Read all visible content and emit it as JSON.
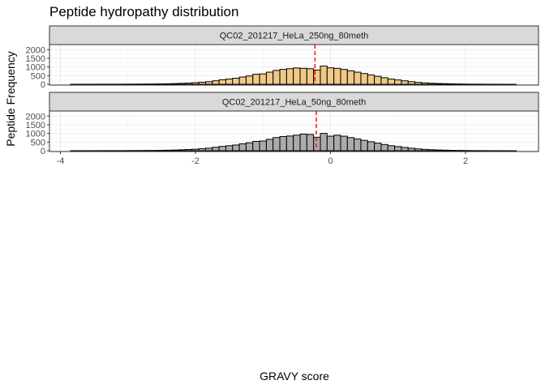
{
  "chart_data": {
    "type": "bar",
    "chart_kind": "faceted histogram",
    "title": "Peptide hydropathy distribution",
    "xlabel": "GRAVY score",
    "ylabel": "Peptide Frequency",
    "xlim": [
      -4,
      2.8
    ],
    "ylim": [
      0,
      2200
    ],
    "x_ticks": [
      -4,
      -2,
      0,
      2
    ],
    "x_tick_labels": [
      "-4",
      "-2",
      "0",
      "2"
    ],
    "y_ticks": [
      0,
      500,
      1000,
      1500,
      2000
    ],
    "y_tick_labels": [
      "0",
      "500",
      "1000",
      "1500",
      "2000"
    ],
    "grid": true,
    "bin_width": 0.1,
    "bin_centers": [
      -3.8,
      -3.7,
      -3.6,
      -3.5,
      -3.4,
      -3.3,
      -3.2,
      -3.1,
      -3.0,
      -2.9,
      -2.8,
      -2.7,
      -2.6,
      -2.5,
      -2.4,
      -2.3,
      -2.2,
      -2.1,
      -2.0,
      -1.9,
      -1.8,
      -1.7,
      -1.6,
      -1.5,
      -1.4,
      -1.3,
      -1.2,
      -1.1,
      -1.0,
      -0.9,
      -0.8,
      -0.7,
      -0.6,
      -0.5,
      -0.4,
      -0.3,
      -0.2,
      -0.1,
      0.0,
      0.1,
      0.2,
      0.3,
      0.4,
      0.5,
      0.6,
      0.7,
      0.8,
      0.9,
      1.0,
      1.1,
      1.2,
      1.3,
      1.4,
      1.5,
      1.6,
      1.7,
      1.8,
      1.9,
      2.0,
      2.1,
      2.2,
      2.3,
      2.4,
      2.5,
      2.6,
      2.7
    ],
    "facets": [
      {
        "label": "QC02_201217_HeLa_250ng_80meth",
        "fill_color": "#F0C987",
        "mean_line": -0.23,
        "values": [
          2,
          2,
          3,
          3,
          4,
          5,
          5,
          6,
          8,
          10,
          12,
          15,
          18,
          22,
          30,
          40,
          55,
          70,
          90,
          120,
          150,
          200,
          260,
          300,
          350,
          420,
          480,
          580,
          600,
          700,
          800,
          860,
          900,
          940,
          920,
          900,
          820,
          1050,
          950,
          920,
          860,
          780,
          700,
          620,
          540,
          460,
          380,
          300,
          250,
          200,
          150,
          110,
          80,
          60,
          45,
          35,
          25,
          18,
          12,
          8,
          6,
          4,
          3,
          2,
          1,
          1
        ]
      },
      {
        "label": "QC02_201217_HeLa_50ng_80meth",
        "fill_color": "#ABABAB",
        "mean_line": -0.21,
        "values": [
          2,
          2,
          3,
          3,
          4,
          5,
          5,
          6,
          8,
          10,
          12,
          15,
          18,
          22,
          30,
          40,
          55,
          70,
          90,
          120,
          150,
          200,
          250,
          290,
          330,
          400,
          460,
          540,
          560,
          660,
          760,
          820,
          850,
          900,
          960,
          940,
          780,
          1000,
          840,
          900,
          840,
          760,
          680,
          600,
          520,
          440,
          360,
          290,
          240,
          190,
          145,
          105,
          78,
          58,
          43,
          33,
          24,
          17,
          11,
          8,
          6,
          4,
          3,
          2,
          1,
          1
        ]
      }
    ],
    "mean_line_color": "#FF0000"
  }
}
